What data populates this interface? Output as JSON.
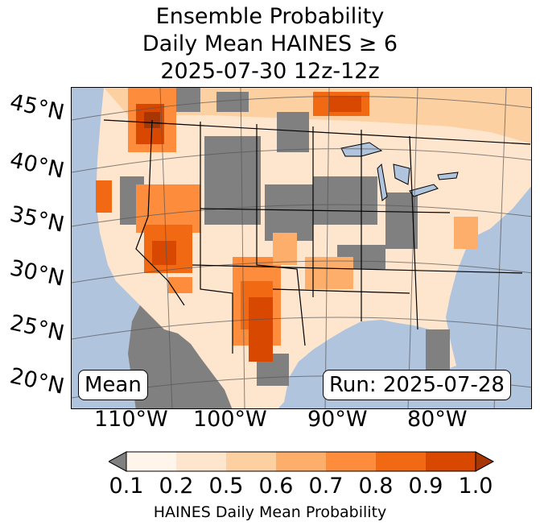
{
  "title": {
    "line1": "Ensemble Probability",
    "line2": "Daily Mean HAINES ≥ 6",
    "line3": "2025-07-30 12z-12z"
  },
  "map": {
    "lat_labels": [
      "45°N",
      "40°N",
      "35°N",
      "30°N",
      "25°N",
      "20°N"
    ],
    "lon_labels": [
      "110°W",
      "100°W",
      "90°W",
      "80°W"
    ],
    "stat_badge": "Mean",
    "run_badge": "Run: 2025-07-28"
  },
  "colorbar": {
    "label": "HAINES Daily Mean Probability",
    "ticks": [
      "0.1",
      "0.2",
      "0.5",
      "0.6",
      "0.7",
      "0.8",
      "0.9",
      "1.0"
    ],
    "under_color": "#808080",
    "colors": [
      "#fff5eb",
      "#fee6ce",
      "#fdd0a2",
      "#fdae6b",
      "#fd8d3c",
      "#f16913",
      "#d94801",
      "#a63603"
    ],
    "no_data_color": "#808080",
    "ocean_color": "#b0c4de"
  }
}
